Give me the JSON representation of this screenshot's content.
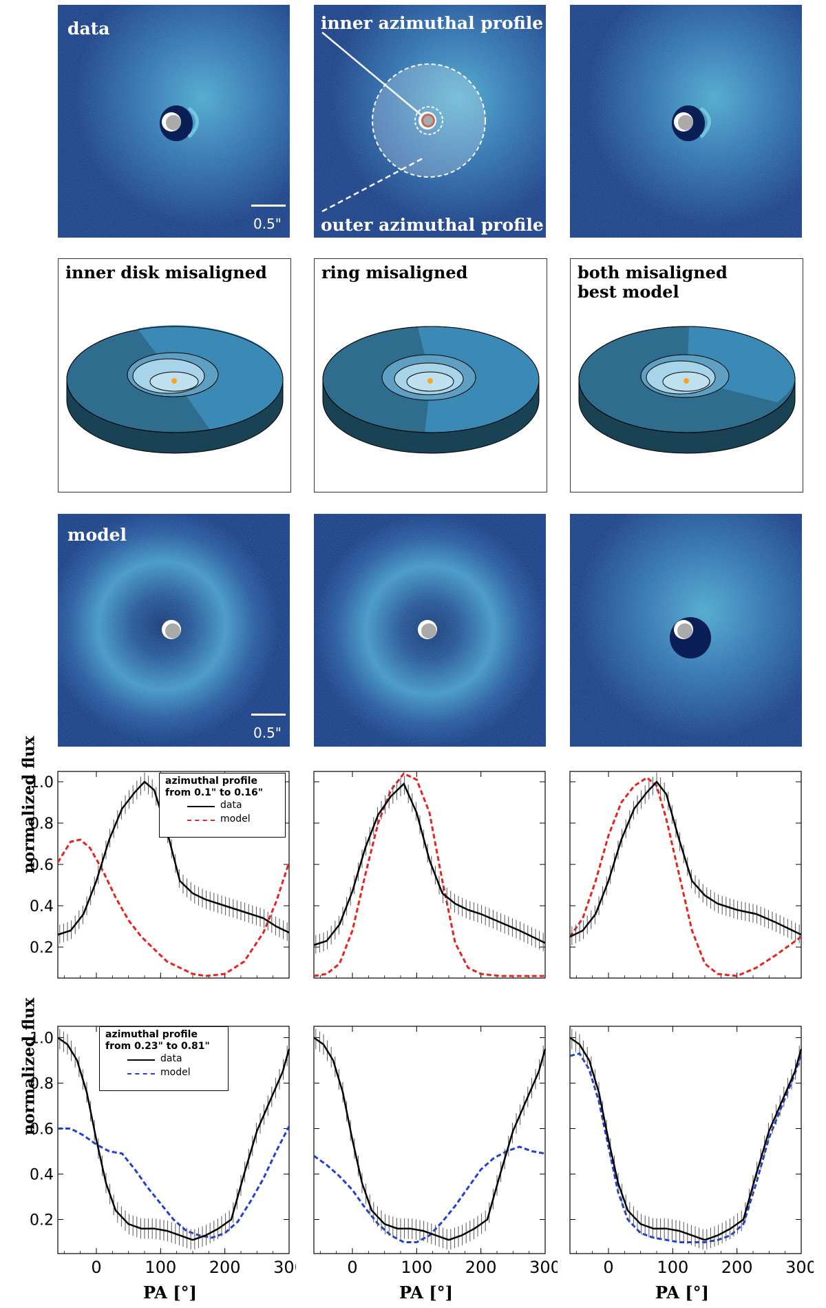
{
  "images_row1": {
    "left_label": "data",
    "mid_label_top": "inner azimuthal profile",
    "mid_label_bottom": "outer azimuthal profile",
    "scalebar": "0.5\""
  },
  "sketches": {
    "left_title": "inner disk misaligned",
    "mid_title": "ring misaligned",
    "right_title": "both misaligned\nbest model"
  },
  "images_row3": {
    "left_label": "model",
    "scalebar": "0.5\""
  },
  "axis": {
    "ylabel": "normalized flux",
    "xlabel": "PA [°]",
    "xticks": [
      "0",
      "100",
      "200",
      "300"
    ],
    "yticks": [
      "0.2",
      "0.4",
      "0.6",
      "0.8",
      "1.0"
    ]
  },
  "legend_inner": {
    "title_line1": "azimuthal profile",
    "title_line2": "from 0.1\" to 0.16\"",
    "data": "data",
    "model": "model"
  },
  "legend_outer": {
    "title_line1": "azimuthal profile",
    "title_line2": "from 0.23\" to 0.81\"",
    "data": "data",
    "model": "model"
  },
  "colors": {
    "bg_dark": "#0d2a66",
    "disk_bright": "#7fd3e0",
    "model_inner": "#e8221c",
    "model_outer": "#1f3fd6",
    "data": "#000000",
    "disk_top": "#3a8ab5",
    "disk_side": "#1a4255",
    "disk_inner": "#a8d4ea"
  },
  "chart_data": [
    {
      "type": "line",
      "panel": "inner-left",
      "xlim": [
        -60,
        300
      ],
      "ylim": [
        0.05,
        1.05
      ],
      "series": [
        {
          "name": "data",
          "x": [
            -60,
            -40,
            -20,
            0,
            20,
            40,
            60,
            75,
            90,
            110,
            130,
            150,
            170,
            200,
            230,
            260,
            280,
            300
          ],
          "y": [
            0.26,
            0.28,
            0.36,
            0.52,
            0.72,
            0.87,
            0.95,
            1.0,
            0.96,
            0.76,
            0.52,
            0.46,
            0.43,
            0.4,
            0.37,
            0.34,
            0.3,
            0.27
          ]
        },
        {
          "name": "model",
          "x": [
            -60,
            -40,
            -25,
            -10,
            10,
            30,
            50,
            70,
            90,
            110,
            130,
            150,
            170,
            200,
            230,
            260,
            280,
            300
          ],
          "y": [
            0.61,
            0.71,
            0.72,
            0.68,
            0.57,
            0.44,
            0.33,
            0.25,
            0.19,
            0.13,
            0.1,
            0.07,
            0.06,
            0.07,
            0.13,
            0.27,
            0.42,
            0.61
          ]
        }
      ]
    },
    {
      "type": "line",
      "panel": "inner-mid",
      "xlim": [
        -60,
        300
      ],
      "ylim": [
        0.05,
        1.05
      ],
      "series": [
        {
          "name": "data",
          "x": [
            -60,
            -40,
            -20,
            0,
            20,
            40,
            60,
            80,
            100,
            120,
            140,
            160,
            180,
            200,
            230,
            260,
            280,
            300
          ],
          "y": [
            0.21,
            0.23,
            0.31,
            0.47,
            0.68,
            0.84,
            0.93,
            0.99,
            0.85,
            0.62,
            0.46,
            0.41,
            0.38,
            0.36,
            0.32,
            0.28,
            0.25,
            0.22
          ]
        },
        {
          "name": "model",
          "x": [
            -60,
            -40,
            -20,
            0,
            20,
            40,
            60,
            80,
            100,
            120,
            140,
            160,
            180,
            200,
            230,
            260,
            300
          ],
          "y": [
            0.06,
            0.07,
            0.12,
            0.28,
            0.55,
            0.8,
            0.96,
            1.04,
            1.01,
            0.85,
            0.52,
            0.22,
            0.1,
            0.07,
            0.06,
            0.06,
            0.06
          ]
        }
      ]
    },
    {
      "type": "line",
      "panel": "inner-right",
      "xlim": [
        -60,
        300
      ],
      "ylim": [
        0.05,
        1.05
      ],
      "series": [
        {
          "name": "data",
          "x": [
            -60,
            -40,
            -20,
            0,
            20,
            40,
            60,
            75,
            90,
            110,
            130,
            150,
            170,
            200,
            230,
            260,
            280,
            300
          ],
          "y": [
            0.25,
            0.28,
            0.36,
            0.52,
            0.72,
            0.87,
            0.95,
            1.0,
            0.94,
            0.72,
            0.52,
            0.45,
            0.41,
            0.38,
            0.36,
            0.32,
            0.29,
            0.26
          ]
        },
        {
          "name": "model",
          "x": [
            -60,
            -40,
            -20,
            0,
            20,
            40,
            60,
            75,
            90,
            110,
            130,
            150,
            170,
            200,
            230,
            260,
            300
          ],
          "y": [
            0.25,
            0.34,
            0.52,
            0.74,
            0.9,
            0.98,
            1.02,
            0.98,
            0.82,
            0.55,
            0.28,
            0.12,
            0.07,
            0.06,
            0.1,
            0.16,
            0.25
          ]
        }
      ]
    },
    {
      "type": "line",
      "panel": "outer-left",
      "xlim": [
        -60,
        300
      ],
      "ylim": [
        0.05,
        1.05
      ],
      "series": [
        {
          "name": "data",
          "x": [
            -60,
            -45,
            -30,
            -15,
            0,
            15,
            30,
            50,
            70,
            90,
            110,
            130,
            150,
            170,
            190,
            210,
            230,
            250,
            270,
            290,
            300
          ],
          "y": [
            1.0,
            0.97,
            0.9,
            0.76,
            0.55,
            0.36,
            0.24,
            0.18,
            0.16,
            0.16,
            0.15,
            0.13,
            0.11,
            0.13,
            0.16,
            0.2,
            0.4,
            0.59,
            0.72,
            0.85,
            0.95
          ]
        },
        {
          "name": "model",
          "x": [
            -60,
            -40,
            -20,
            0,
            20,
            40,
            60,
            80,
            100,
            120,
            140,
            160,
            180,
            200,
            220,
            240,
            260,
            280,
            300
          ],
          "y": [
            0.6,
            0.6,
            0.57,
            0.53,
            0.5,
            0.49,
            0.42,
            0.34,
            0.27,
            0.2,
            0.15,
            0.13,
            0.12,
            0.14,
            0.19,
            0.28,
            0.38,
            0.5,
            0.61
          ]
        }
      ]
    },
    {
      "type": "line",
      "panel": "outer-mid",
      "xlim": [
        -60,
        300
      ],
      "ylim": [
        0.05,
        1.05
      ],
      "series": [
        {
          "name": "data",
          "x": [
            -60,
            -45,
            -30,
            -15,
            0,
            15,
            30,
            50,
            70,
            90,
            110,
            130,
            150,
            170,
            190,
            210,
            230,
            250,
            270,
            290,
            300
          ],
          "y": [
            1.0,
            0.97,
            0.9,
            0.76,
            0.55,
            0.36,
            0.24,
            0.18,
            0.16,
            0.16,
            0.15,
            0.13,
            0.11,
            0.13,
            0.16,
            0.2,
            0.4,
            0.59,
            0.72,
            0.85,
            0.95
          ]
        },
        {
          "name": "model",
          "x": [
            -60,
            -40,
            -20,
            0,
            20,
            40,
            60,
            80,
            100,
            120,
            140,
            160,
            180,
            200,
            220,
            240,
            260,
            280,
            300
          ],
          "y": [
            0.48,
            0.44,
            0.39,
            0.33,
            0.25,
            0.18,
            0.13,
            0.1,
            0.1,
            0.13,
            0.19,
            0.26,
            0.34,
            0.42,
            0.47,
            0.5,
            0.52,
            0.5,
            0.49
          ]
        }
      ]
    },
    {
      "type": "line",
      "panel": "outer-right",
      "xlim": [
        -60,
        300
      ],
      "ylim": [
        0.05,
        1.05
      ],
      "series": [
        {
          "name": "data",
          "x": [
            -60,
            -45,
            -30,
            -15,
            0,
            15,
            30,
            50,
            70,
            90,
            110,
            130,
            150,
            170,
            190,
            210,
            230,
            250,
            270,
            290,
            300
          ],
          "y": [
            1.0,
            0.97,
            0.9,
            0.76,
            0.55,
            0.36,
            0.24,
            0.18,
            0.16,
            0.16,
            0.15,
            0.13,
            0.11,
            0.13,
            0.16,
            0.2,
            0.4,
            0.59,
            0.72,
            0.85,
            0.95
          ]
        },
        {
          "name": "model",
          "x": [
            -60,
            -45,
            -30,
            -15,
            0,
            15,
            30,
            50,
            70,
            90,
            110,
            130,
            150,
            170,
            190,
            210,
            230,
            250,
            270,
            290,
            300
          ],
          "y": [
            0.92,
            0.93,
            0.86,
            0.72,
            0.52,
            0.32,
            0.2,
            0.14,
            0.12,
            0.11,
            0.1,
            0.1,
            0.1,
            0.11,
            0.13,
            0.18,
            0.36,
            0.56,
            0.7,
            0.84,
            0.93
          ]
        }
      ]
    }
  ]
}
